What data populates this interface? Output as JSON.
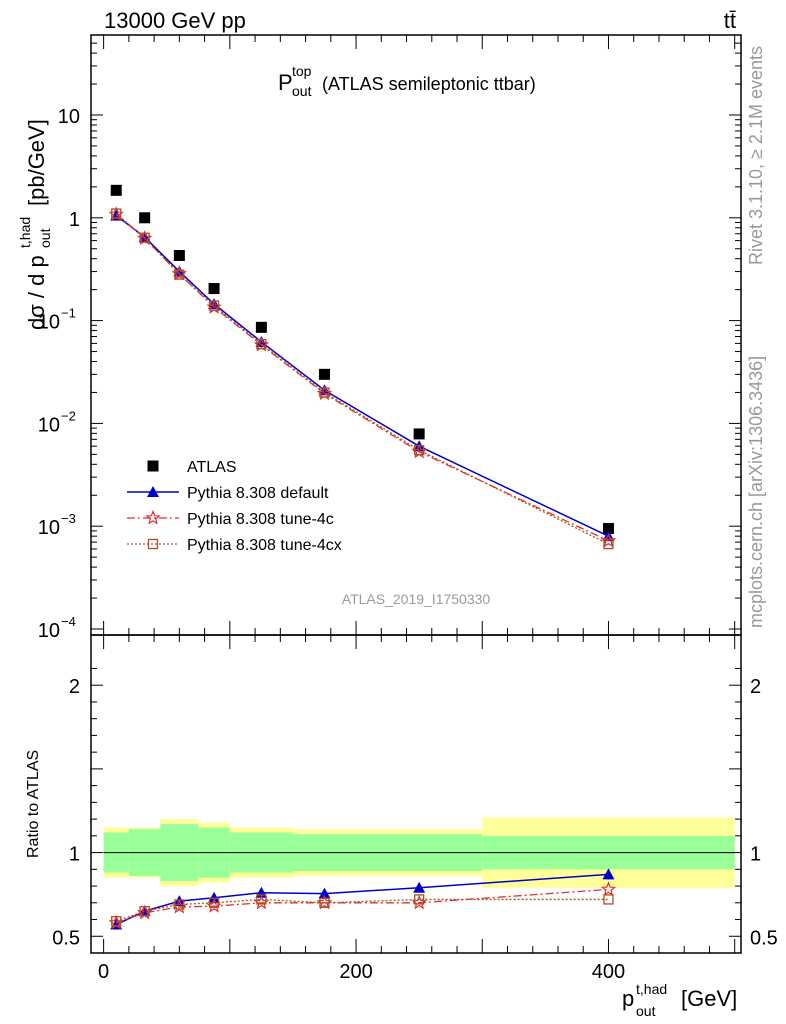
{
  "header": {
    "energy_label": "13000 GeV pp",
    "process_label": "tt̄",
    "plot_title_main": "P",
    "plot_title_sup": "top",
    "plot_title_sub": "out",
    "plot_title_rest": "(ATLAS semileptonic ttbar)"
  },
  "side_labels": {
    "rivet": "Rivet 3.1.10, ≥ 2.1M events",
    "mcplots": "mcplots.cern.ch [arXiv:1306.3436]"
  },
  "watermark": "ATLAS_2019_I1750330",
  "axes": {
    "ylabel_main": "dσ / d p",
    "ylabel_main_sup": "t,had",
    "ylabel_main_sub": "out",
    "ylabel_main_unit": "[pb/GeV]",
    "ylabel_ratio": "Ratio to ATLAS",
    "xlabel": "p",
    "xlabel_sup": "t,had",
    "xlabel_sub": "out",
    "xlabel_unit": "[GeV]"
  },
  "colors": {
    "data": "#000000",
    "default": "#0000cc",
    "tune4c": "#e03030",
    "tune4cx": "#b05020",
    "band_inner": "#99ff99",
    "band_outer": "#ffff99"
  },
  "chart_data": {
    "type": "scatter",
    "x_edges": [
      0,
      20,
      45,
      75,
      100,
      150,
      200,
      300,
      500
    ],
    "x": [
      10,
      32.5,
      60,
      87.5,
      125,
      175,
      250,
      400
    ],
    "xlim": [
      -10,
      505
    ],
    "main": {
      "ylog": true,
      "ylim": [
        0.0001,
        60
      ],
      "yticks": [
        {
          "v": 10,
          "m": "10",
          "e": ""
        },
        {
          "v": 1,
          "m": "1",
          "e": ""
        },
        {
          "v": 0.1,
          "m": "10",
          "e": "−1"
        },
        {
          "v": 0.01,
          "m": "10",
          "e": "−2"
        },
        {
          "v": 0.001,
          "m": "10",
          "e": "−3"
        },
        {
          "v": 0.0001,
          "m": "10",
          "e": "−4"
        }
      ]
    },
    "ratio": {
      "ylim": [
        0.4,
        2.3
      ],
      "yticks": [
        0.5,
        1,
        2
      ],
      "inner_band": [
        0.12,
        0.14,
        0.17,
        0.15,
        0.12,
        0.11,
        0.11,
        0.1,
        0.1
      ],
      "outer_band": [
        0.15,
        0.15,
        0.2,
        0.18,
        0.15,
        0.14,
        0.14,
        0.21,
        0.21
      ]
    },
    "xticks": [
      0,
      200,
      400
    ],
    "series": [
      {
        "name": "ATLAS",
        "key": "data",
        "marker": "square",
        "values": [
          1.85,
          1.0,
          0.43,
          0.205,
          0.086,
          0.03,
          0.0079,
          0.00095
        ],
        "ratio": [
          1,
          1,
          1,
          1,
          1,
          1,
          1,
          1
        ]
      },
      {
        "name": "Pythia 8.308 default",
        "key": "default",
        "marker": "triangle",
        "values": [
          1.05,
          0.65,
          0.3,
          0.145,
          0.062,
          0.021,
          0.006,
          0.0008
        ],
        "ratio": [
          0.57,
          0.65,
          0.71,
          0.73,
          0.76,
          0.755,
          0.79,
          0.87
        ]
      },
      {
        "name": "Pythia 8.308 tune-4c",
        "key": "tune4c",
        "marker": "star",
        "values": [
          1.08,
          0.63,
          0.285,
          0.135,
          0.058,
          0.0195,
          0.0053,
          0.00072
        ],
        "ratio": [
          0.58,
          0.64,
          0.675,
          0.68,
          0.7,
          0.7,
          0.7,
          0.78
        ]
      },
      {
        "name": "Pythia 8.308 tune-4cx",
        "key": "tune4cx",
        "marker": "open-square",
        "values": [
          1.1,
          0.64,
          0.28,
          0.14,
          0.059,
          0.02,
          0.0055,
          0.00067
        ],
        "ratio": [
          0.59,
          0.65,
          0.69,
          0.7,
          0.72,
          0.7,
          0.72,
          0.72
        ]
      }
    ]
  }
}
